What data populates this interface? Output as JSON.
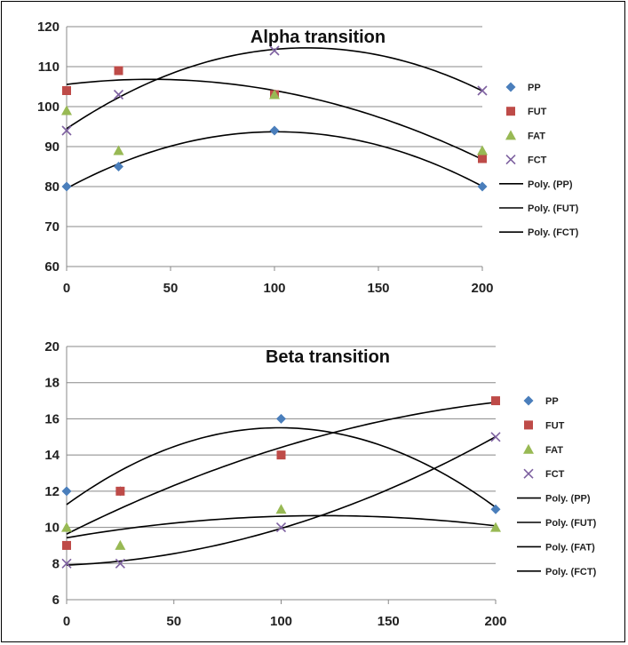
{
  "chart_data": [
    {
      "type": "scatter",
      "title": "Alpha transition",
      "xlabel": "",
      "ylabel": "",
      "xlim": [
        0,
        200
      ],
      "ylim": [
        60,
        120
      ],
      "xticks": [
        0,
        50,
        100,
        150,
        200
      ],
      "yticks": [
        60,
        70,
        80,
        90,
        100,
        110,
        120
      ],
      "x": [
        0,
        25,
        100,
        200
      ],
      "grid": true,
      "legend_position": "right",
      "series": [
        {
          "name": "PP",
          "marker": "diamond",
          "color": "#4a7ebb",
          "values": [
            80,
            85,
            94,
            80
          ]
        },
        {
          "name": "FUT",
          "marker": "square",
          "color": "#be4b48",
          "values": [
            104,
            109,
            103,
            87
          ]
        },
        {
          "name": "FAT",
          "marker": "triangle",
          "color": "#98b954",
          "values": [
            99,
            89,
            103,
            89
          ]
        },
        {
          "name": "FCT",
          "marker": "x",
          "color": "#7d60a0",
          "values": [
            94,
            103,
            114,
            104
          ]
        }
      ],
      "trendlines": [
        {
          "name": "Poly. (PP)",
          "of": "PP"
        },
        {
          "name": "Poly. (FUT)",
          "of": "FUT"
        },
        {
          "name": "Poly. (FCT)",
          "of": "FCT"
        }
      ]
    },
    {
      "type": "scatter",
      "title": "Beta transition",
      "xlabel": "",
      "ylabel": "",
      "xlim": [
        0,
        200
      ],
      "ylim": [
        6,
        20
      ],
      "xticks": [
        0,
        50,
        100,
        150,
        200
      ],
      "yticks": [
        6,
        8,
        10,
        12,
        14,
        16,
        18,
        20
      ],
      "x": [
        0,
        25,
        100,
        200
      ],
      "grid": true,
      "legend_position": "right",
      "series": [
        {
          "name": "PP",
          "marker": "diamond",
          "color": "#4a7ebb",
          "values": [
            12,
            12,
            16,
            11
          ]
        },
        {
          "name": "FUT",
          "marker": "square",
          "color": "#be4b48",
          "values": [
            9,
            12,
            14,
            17
          ]
        },
        {
          "name": "FAT",
          "marker": "triangle",
          "color": "#98b954",
          "values": [
            10,
            9,
            11,
            10
          ]
        },
        {
          "name": "FCT",
          "marker": "x",
          "color": "#7d60a0",
          "values": [
            8,
            8,
            10,
            15
          ]
        }
      ],
      "trendlines": [
        {
          "name": "Poly. (PP)",
          "of": "PP"
        },
        {
          "name": "Poly. (FUT)",
          "of": "FUT"
        },
        {
          "name": "Poly. (FAT)",
          "of": "FAT"
        },
        {
          "name": "Poly. (FCT)",
          "of": "FCT"
        }
      ]
    }
  ]
}
